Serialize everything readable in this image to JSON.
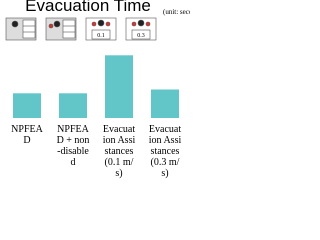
{
  "chart_data": {
    "type": "bar",
    "title": "Evacuation Time",
    "subtitle": "(unit: seconds)",
    "icon_labels": [
      "0.1",
      "0.3"
    ],
    "categories": [
      "NPFEAD",
      "NPFEAD + non-disabled",
      "Evacuation Assistances (0.1 m/s)",
      "Evacuation Assistances (0.3 m/s)"
    ],
    "values": [
      26,
      26,
      66,
      30
    ],
    "color": "#62c6c9",
    "ylim": [
      0,
      80
    ]
  }
}
